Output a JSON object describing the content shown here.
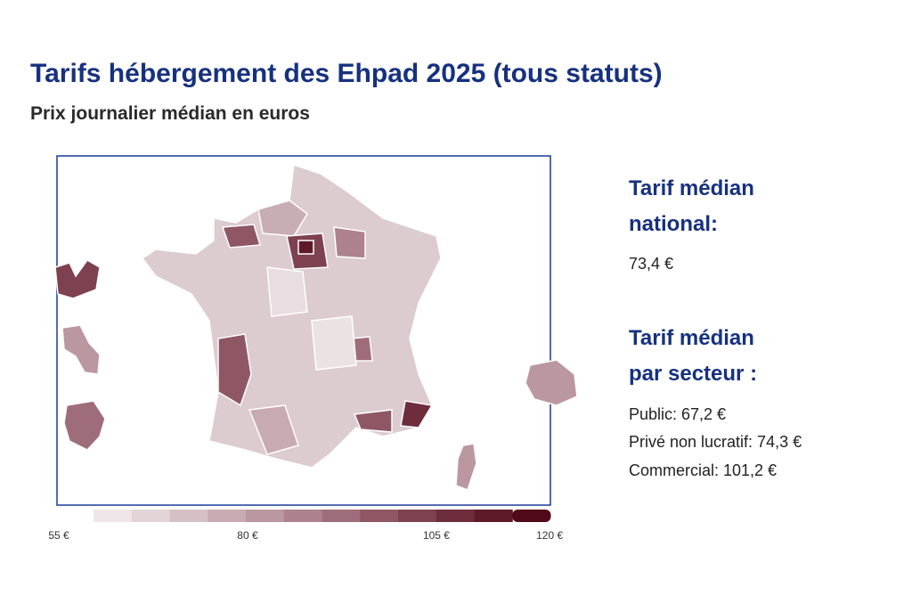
{
  "header": {
    "title": "Tarifs hébergement des Ehpad 2025 (tous statuts)",
    "subtitle": "Prix journalier médian en euros"
  },
  "legend": {
    "lim": [
      59.6,
      120.1
    ],
    "ticks": [
      {
        "value": 55,
        "label": "55 €"
      },
      {
        "value": 80,
        "label": "80 €"
      },
      {
        "value": 105,
        "label": "105 €"
      },
      {
        "value": 120,
        "label": "120 €"
      }
    ],
    "colors": [
      "#eee6e8",
      "#e2d4d7",
      "#d5c0c5",
      "#c8abb2",
      "#bb979f",
      "#ad828c",
      "#9f6d79",
      "#8f5764",
      "#7e4150",
      "#6e2d3c",
      "#5f1a2a",
      "#52091a"
    ]
  },
  "panel": {
    "national_heading": "Tarif médian national:",
    "national_value": "73,4 €",
    "sector_heading": "Tarif médian par secteur :",
    "sectors": [
      "Public: 67,2 €",
      "Privé non lucratif: 74,3 €",
      "Commercial: 101,2 €"
    ]
  }
}
